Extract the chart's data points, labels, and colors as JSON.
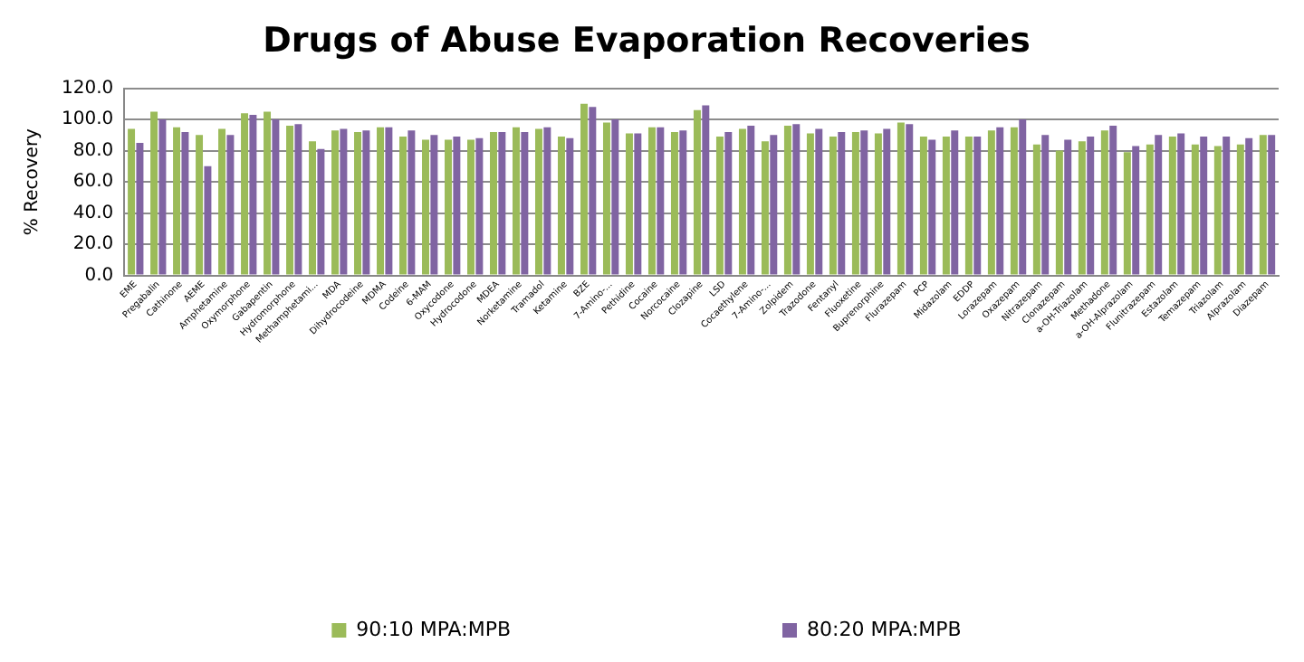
{
  "chart_data": {
    "type": "bar",
    "title": "Drugs of Abuse Evaporation Recoveries",
    "ylabel": "% Recovery",
    "categories": [
      "EME",
      "Pregabalin",
      "Cathinone",
      "AEME",
      "Amphetamine",
      "Oxymorphone",
      "Gabapentin",
      "Hydromorphone",
      "Methamphetami...",
      "MDA",
      "Dihydrocodeine",
      "MDMA",
      "Codeine",
      "6-MAM",
      "Oxycodone",
      "Hydrocodone",
      "MDEA",
      "Norketamine",
      "Tramadol",
      "Ketamine",
      "BZE",
      "7-Amino-...",
      "Pethidine",
      "Cocaine",
      "Norcocaine",
      "Clozapine",
      "LSD",
      "Cocaethylene",
      "7-Amino-...",
      "Zolpidem",
      "Trazodone",
      "Fentanyl",
      "Fluoxetine",
      "Buprenorphine",
      "Flurazepam",
      "PCP",
      "Midazolam",
      "EDDP",
      "Lorazepam",
      "Oxazepam",
      "Nitrazepam",
      "Clonazepam",
      "a-OH-Triazolam",
      "Methadone",
      "a-OH-Alprazolam",
      "Flunitrazepam",
      "Estazolam",
      "Temazepam",
      "Triazolam",
      "Alprazolam",
      "Diazepam"
    ],
    "series": [
      {
        "name": "90:10 MPA:MPB",
        "color": "#9bbb59",
        "values": [
          94,
          105,
          95,
          90,
          94,
          104,
          105,
          96,
          86,
          93,
          92,
          95,
          89,
          87,
          87,
          87,
          92,
          95,
          94,
          89,
          110,
          98,
          91,
          95,
          92,
          106,
          89,
          94,
          86,
          96,
          91,
          89,
          92,
          91,
          98,
          89,
          89,
          89,
          93,
          95,
          84,
          80,
          86,
          93,
          79,
          84,
          89,
          84,
          83,
          84,
          90
        ]
      },
      {
        "name": "80:20 MPA:MPB",
        "color": "#8064a2",
        "values": [
          85,
          100,
          92,
          70,
          90,
          103,
          100,
          97,
          81,
          94,
          93,
          95,
          93,
          90,
          89,
          88,
          92,
          92,
          95,
          88,
          108,
          100,
          91,
          95,
          93,
          109,
          92,
          96,
          90,
          97,
          94,
          92,
          93,
          94,
          97,
          87,
          93,
          89,
          95,
          100,
          90,
          87,
          89,
          96,
          83,
          90,
          91,
          89,
          89,
          88,
          90
        ]
      }
    ],
    "ylim": [
      0,
      120
    ],
    "yticks": [
      {
        "value": 0,
        "label": "0.0"
      },
      {
        "value": 20,
        "label": "20.0"
      },
      {
        "value": 40,
        "label": "40.0"
      },
      {
        "value": 60,
        "label": "60.0"
      },
      {
        "value": 80,
        "label": "80.0"
      },
      {
        "value": 100,
        "label": "100.0"
      },
      {
        "value": 120,
        "label": "120.0"
      }
    ],
    "grid": "y",
    "legend": "bottom"
  }
}
